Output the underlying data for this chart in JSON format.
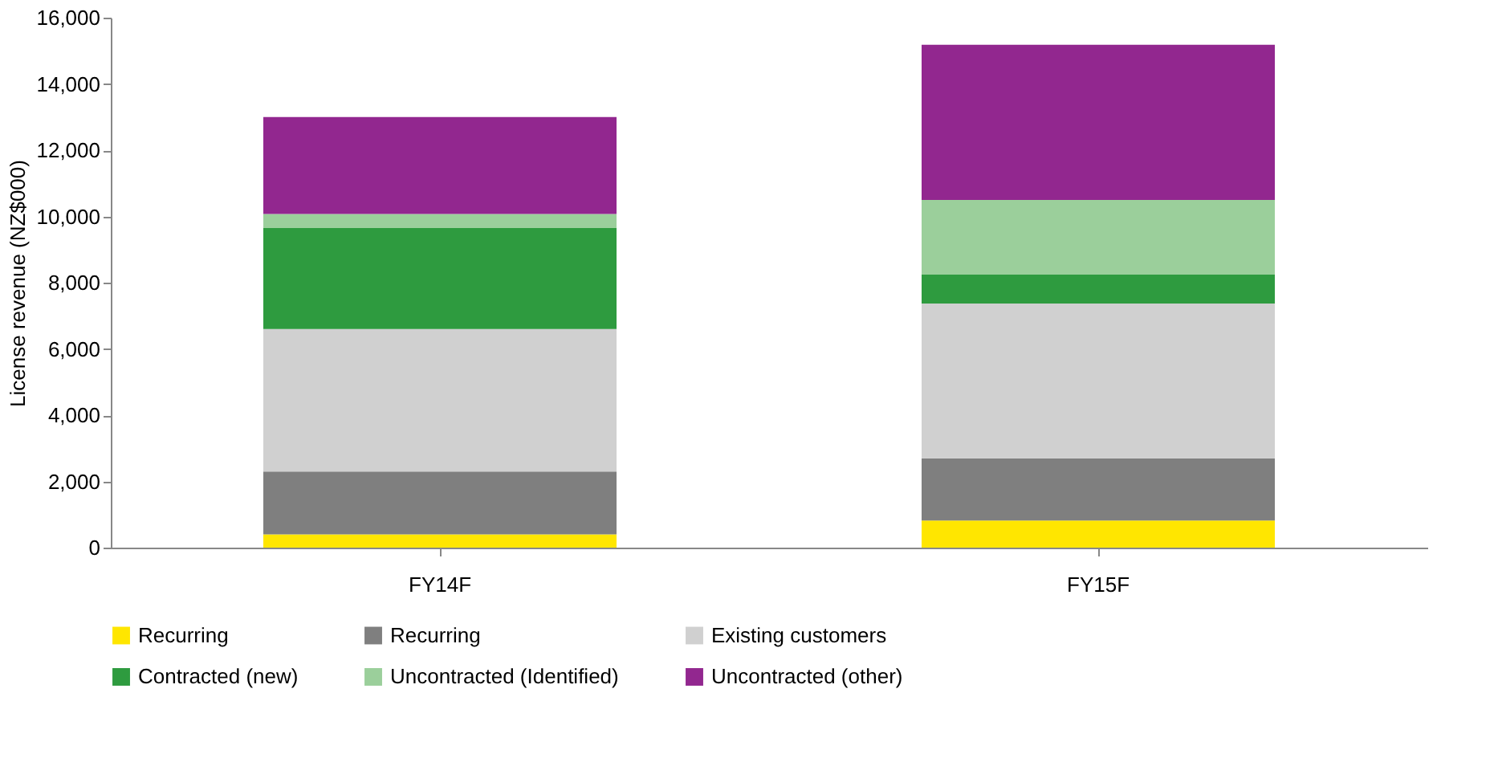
{
  "chart_data": {
    "type": "bar",
    "stacked": true,
    "ylabel": "License revenue (NZ$000)",
    "categories": [
      "FY14F",
      "FY15F"
    ],
    "series": [
      {
        "name": "Recurring",
        "color": "#ffe600",
        "values": [
          400,
          820
        ]
      },
      {
        "name": "Recurring",
        "color": "#7f7f7f",
        "values": [
          1900,
          1880
        ]
      },
      {
        "name": "Existing customers",
        "color": "#d0d0d0",
        "values": [
          4300,
          4670
        ]
      },
      {
        "name": "Contracted (new)",
        "color": "#2e9b3f",
        "values": [
          3050,
          870
        ]
      },
      {
        "name": "Uncontracted (Identified)",
        "color": "#9bcf9b",
        "values": [
          420,
          2260
        ]
      },
      {
        "name": "Uncontracted (other)",
        "color": "#92278f",
        "values": [
          2930,
          4680
        ]
      }
    ],
    "ylim": [
      0,
      16000
    ],
    "yticks": [
      0,
      {
        "value": 2000,
        "label": "2,000"
      },
      {
        "value": 4000,
        "label": "4,000"
      },
      {
        "value": 6000,
        "label": "6,000"
      },
      {
        "value": 8000,
        "label": "8,000"
      },
      {
        "value": 10000,
        "label": "10,000"
      },
      {
        "value": 12000,
        "label": "12,000"
      },
      {
        "value": 14000,
        "label": "14,000"
      },
      {
        "value": 16000,
        "label": "16,000"
      }
    ],
    "grid": false,
    "legend": "bottom"
  }
}
